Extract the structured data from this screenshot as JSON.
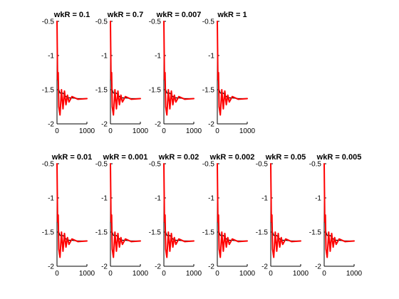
{
  "figure": {
    "background": "#ffffff"
  },
  "chart_data": [
    {
      "type": "line",
      "title": "wkR = 0.1",
      "xlim": [
        0,
        1000
      ],
      "ylim": [
        -2,
        -0.5
      ],
      "xticks": [
        "0",
        "1000"
      ],
      "yticks": [
        "-0.5",
        "-1",
        "-1.5",
        "-2"
      ],
      "series": [
        {
          "color": "#000000",
          "x_samples": [
            0,
            20,
            60,
            100,
            200,
            300,
            400,
            500,
            700,
            1000
          ],
          "y_samples": [
            -0.5,
            -1.25,
            -1.5,
            -1.55,
            -1.55,
            -1.6,
            -1.62,
            -1.62,
            -1.63,
            -1.63
          ]
        },
        {
          "color": "#ff0000",
          "x_samples": [
            0,
            20,
            40,
            60,
            100,
            150,
            200,
            250,
            300,
            350,
            400,
            500,
            700,
            1000
          ],
          "y_samples": [
            -0.5,
            -1.35,
            -1.25,
            -1.75,
            -1.87,
            -1.5,
            -1.78,
            -1.52,
            -1.72,
            -1.58,
            -1.68,
            -1.6,
            -1.64,
            -1.63
          ]
        }
      ]
    },
    {
      "type": "line",
      "title": "wkR = 0.7",
      "xlim": [
        0,
        1000
      ],
      "ylim": [
        -2,
        -0.5
      ],
      "xticks": [
        "0",
        "1000"
      ],
      "yticks": [
        "-0.5",
        "-1",
        "-1.5",
        "-2"
      ],
      "series": [
        {
          "color": "#000000",
          "x_samples": [
            0,
            20,
            60,
            100,
            200,
            300,
            400,
            500,
            700,
            1000
          ],
          "y_samples": [
            -0.5,
            -1.25,
            -1.5,
            -1.55,
            -1.55,
            -1.6,
            -1.62,
            -1.62,
            -1.63,
            -1.63
          ]
        },
        {
          "color": "#ff0000",
          "x_samples": [
            0,
            20,
            40,
            60,
            100,
            150,
            200,
            250,
            300,
            350,
            400,
            500,
            700,
            1000
          ],
          "y_samples": [
            -0.5,
            -1.35,
            -1.25,
            -1.75,
            -1.87,
            -1.5,
            -1.78,
            -1.52,
            -1.72,
            -1.58,
            -1.68,
            -1.6,
            -1.64,
            -1.63
          ]
        }
      ]
    },
    {
      "type": "line",
      "title": "wkR = 0.007",
      "xlim": [
        0,
        1000
      ],
      "ylim": [
        -2,
        -0.5
      ],
      "xticks": [
        "0",
        "1000"
      ],
      "yticks": [
        "-0.5",
        "-1",
        "-1.5",
        "-2"
      ],
      "series": [
        {
          "color": "#000000",
          "x_samples": [
            0,
            20,
            60,
            100,
            200,
            300,
            400,
            500,
            700,
            1000
          ],
          "y_samples": [
            -0.5,
            -1.25,
            -1.5,
            -1.55,
            -1.55,
            -1.6,
            -1.62,
            -1.62,
            -1.63,
            -1.63
          ]
        },
        {
          "color": "#ff0000",
          "x_samples": [
            0,
            20,
            40,
            60,
            100,
            150,
            200,
            250,
            300,
            350,
            400,
            500,
            700,
            1000
          ],
          "y_samples": [
            -0.5,
            -1.35,
            -1.25,
            -1.75,
            -1.87,
            -1.5,
            -1.78,
            -1.52,
            -1.72,
            -1.58,
            -1.68,
            -1.6,
            -1.64,
            -1.63
          ]
        }
      ]
    },
    {
      "type": "line",
      "title": "wkR = 1",
      "xlim": [
        0,
        1000
      ],
      "ylim": [
        -2,
        -0.5
      ],
      "xticks": [
        "0",
        "1000"
      ],
      "yticks": [
        "-0.5",
        "-1",
        "-1.5",
        "-2"
      ],
      "series": [
        {
          "color": "#000000",
          "x_samples": [
            0,
            20,
            60,
            100,
            200,
            300,
            400,
            500,
            700,
            1000
          ],
          "y_samples": [
            -0.5,
            -1.25,
            -1.5,
            -1.55,
            -1.55,
            -1.6,
            -1.62,
            -1.62,
            -1.63,
            -1.63
          ]
        },
        {
          "color": "#ff0000",
          "x_samples": [
            0,
            20,
            40,
            60,
            100,
            150,
            200,
            250,
            300,
            350,
            400,
            500,
            700,
            1000
          ],
          "y_samples": [
            -0.5,
            -1.35,
            -1.25,
            -1.75,
            -1.87,
            -1.5,
            -1.78,
            -1.52,
            -1.72,
            -1.58,
            -1.68,
            -1.6,
            -1.64,
            -1.63
          ]
        }
      ]
    },
    {
      "type": "line",
      "title": "wkR = 0.01",
      "xlim": [
        0,
        1000
      ],
      "ylim": [
        -2,
        -0.5
      ],
      "xticks": [
        "0",
        "1000"
      ],
      "yticks": [
        "-0.5",
        "-1",
        "-1.5",
        "-2"
      ],
      "series": [
        {
          "color": "#000000",
          "x_samples": [
            0,
            20,
            60,
            100,
            200,
            300,
            400,
            500,
            700,
            1000
          ],
          "y_samples": [
            -0.5,
            -1.25,
            -1.5,
            -1.55,
            -1.55,
            -1.6,
            -1.62,
            -1.62,
            -1.63,
            -1.63
          ]
        },
        {
          "color": "#ff0000",
          "x_samples": [
            0,
            20,
            40,
            60,
            100,
            150,
            200,
            250,
            300,
            350,
            400,
            500,
            700,
            1000
          ],
          "y_samples": [
            -0.5,
            -1.35,
            -1.25,
            -1.75,
            -1.87,
            -1.5,
            -1.78,
            -1.52,
            -1.72,
            -1.58,
            -1.68,
            -1.6,
            -1.64,
            -1.63
          ]
        }
      ]
    },
    {
      "type": "line",
      "title": "wkR = 0.001",
      "xlim": [
        0,
        1000
      ],
      "ylim": [
        -2,
        -0.5
      ],
      "xticks": [
        "0",
        "1000"
      ],
      "yticks": [
        "-0.5",
        "-1",
        "-1.5",
        "-2"
      ],
      "series": [
        {
          "color": "#000000",
          "x_samples": [
            0,
            20,
            60,
            100,
            200,
            300,
            400,
            500,
            700,
            1000
          ],
          "y_samples": [
            -0.5,
            -1.25,
            -1.5,
            -1.55,
            -1.55,
            -1.6,
            -1.62,
            -1.62,
            -1.63,
            -1.63
          ]
        },
        {
          "color": "#ff0000",
          "x_samples": [
            0,
            20,
            40,
            60,
            100,
            150,
            200,
            250,
            300,
            350,
            400,
            500,
            700,
            1000
          ],
          "y_samples": [
            -0.5,
            -1.35,
            -1.25,
            -1.75,
            -1.87,
            -1.5,
            -1.78,
            -1.52,
            -1.72,
            -1.58,
            -1.68,
            -1.6,
            -1.64,
            -1.63
          ]
        }
      ]
    },
    {
      "type": "line",
      "title": "wkR = 0.02",
      "xlim": [
        0,
        1000
      ],
      "ylim": [
        -2,
        -0.5
      ],
      "xticks": [
        "0",
        "1000"
      ],
      "yticks": [
        "-0.5",
        "-1",
        "-1.5",
        "-2"
      ],
      "series": [
        {
          "color": "#000000",
          "x_samples": [
            0,
            20,
            60,
            100,
            200,
            300,
            400,
            500,
            700,
            1000
          ],
          "y_samples": [
            -0.5,
            -1.25,
            -1.5,
            -1.55,
            -1.55,
            -1.6,
            -1.62,
            -1.62,
            -1.63,
            -1.63
          ]
        },
        {
          "color": "#ff0000",
          "x_samples": [
            0,
            20,
            40,
            60,
            100,
            150,
            200,
            250,
            300,
            350,
            400,
            500,
            700,
            1000
          ],
          "y_samples": [
            -0.5,
            -1.35,
            -1.25,
            -1.75,
            -1.87,
            -1.5,
            -1.78,
            -1.52,
            -1.72,
            -1.58,
            -1.68,
            -1.6,
            -1.64,
            -1.63
          ]
        }
      ]
    },
    {
      "type": "line",
      "title": "wkR = 0.002",
      "xlim": [
        0,
        1000
      ],
      "ylim": [
        -2,
        -0.5
      ],
      "xticks": [
        "0",
        "1000"
      ],
      "yticks": [
        "-0.5",
        "-1",
        "-1.5",
        "-2"
      ],
      "series": [
        {
          "color": "#000000",
          "x_samples": [
            0,
            20,
            60,
            100,
            200,
            300,
            400,
            500,
            700,
            1000
          ],
          "y_samples": [
            -0.5,
            -1.25,
            -1.5,
            -1.55,
            -1.55,
            -1.6,
            -1.62,
            -1.62,
            -1.63,
            -1.63
          ]
        },
        {
          "color": "#ff0000",
          "x_samples": [
            0,
            20,
            40,
            60,
            100,
            150,
            200,
            250,
            300,
            350,
            400,
            500,
            700,
            1000
          ],
          "y_samples": [
            -0.5,
            -1.35,
            -1.25,
            -1.75,
            -1.87,
            -1.5,
            -1.78,
            -1.52,
            -1.72,
            -1.58,
            -1.68,
            -1.6,
            -1.64,
            -1.63
          ]
        }
      ]
    },
    {
      "type": "line",
      "title": "wkR = 0.05",
      "xlim": [
        0,
        1000
      ],
      "ylim": [
        -2,
        -0.5
      ],
      "xticks": [
        "0",
        "1000"
      ],
      "yticks": [
        "-0.5",
        "-1",
        "-1.5",
        "-2"
      ],
      "series": [
        {
          "color": "#000000",
          "x_samples": [
            0,
            20,
            60,
            100,
            200,
            300,
            400,
            500,
            700,
            1000
          ],
          "y_samples": [
            -0.5,
            -1.25,
            -1.5,
            -1.55,
            -1.55,
            -1.6,
            -1.62,
            -1.62,
            -1.63,
            -1.63
          ]
        },
        {
          "color": "#ff0000",
          "x_samples": [
            0,
            20,
            40,
            60,
            100,
            150,
            200,
            250,
            300,
            350,
            400,
            500,
            700,
            1000
          ],
          "y_samples": [
            -0.5,
            -1.35,
            -1.25,
            -1.75,
            -1.87,
            -1.5,
            -1.78,
            -1.52,
            -1.72,
            -1.58,
            -1.68,
            -1.6,
            -1.64,
            -1.63
          ]
        }
      ]
    },
    {
      "type": "line",
      "title": "wkR = 0.005",
      "xlim": [
        0,
        1000
      ],
      "ylim": [
        -2,
        -0.5
      ],
      "xticks": [
        "0",
        "1000"
      ],
      "yticks": [
        "-0.5",
        "-1",
        "-1.5",
        "-2"
      ],
      "series": [
        {
          "color": "#000000",
          "x_samples": [
            0,
            20,
            60,
            100,
            200,
            300,
            400,
            500,
            700,
            1000
          ],
          "y_samples": [
            -0.5,
            -1.25,
            -1.5,
            -1.55,
            -1.55,
            -1.6,
            -1.62,
            -1.62,
            -1.63,
            -1.63
          ]
        },
        {
          "color": "#ff0000",
          "x_samples": [
            0,
            20,
            40,
            60,
            100,
            150,
            200,
            250,
            300,
            350,
            400,
            500,
            700,
            1000
          ],
          "y_samples": [
            -0.5,
            -1.35,
            -1.25,
            -1.75,
            -1.87,
            -1.5,
            -1.78,
            -1.52,
            -1.72,
            -1.58,
            -1.68,
            -1.6,
            -1.64,
            -1.63
          ]
        }
      ]
    }
  ]
}
